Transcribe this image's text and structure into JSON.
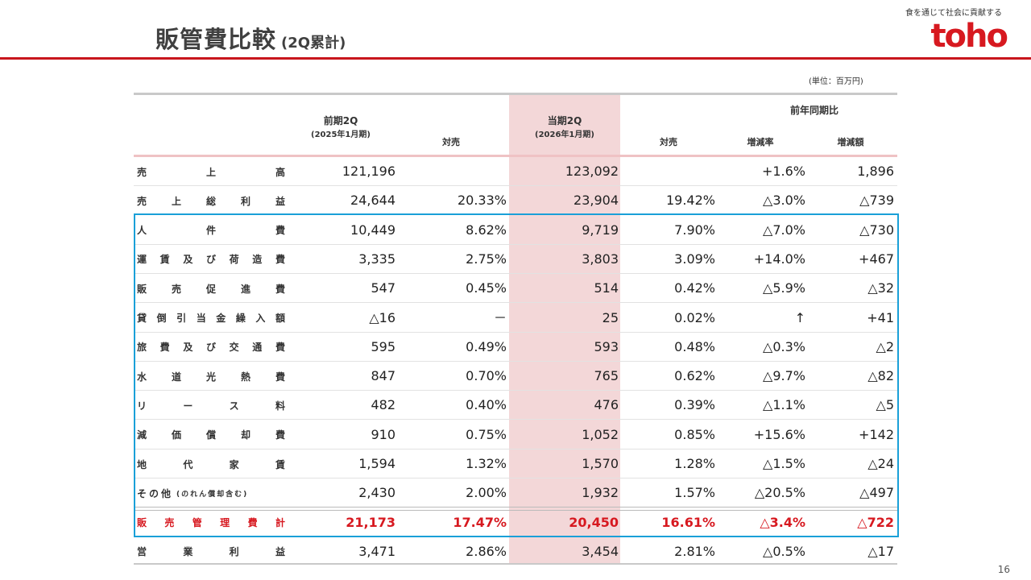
{
  "header": {
    "title": "販管費比較",
    "subtitle": "(2Q累計)",
    "tagline": "食を通じて社会に貢献する",
    "logo": "toho",
    "unit": "(単位：百万円)"
  },
  "columns": {
    "prev": "前期2Q",
    "prev_sub": "(2025年1月期)",
    "prev_ratio": "対売",
    "curr": "当期2Q",
    "curr_sub": "(2026年1月期)",
    "yoy": "前年同期比",
    "curr_ratio": "対売",
    "growth": "増減率",
    "diff": "増減額"
  },
  "rows": [
    {
      "chars": [
        "売",
        "上",
        "高"
      ],
      "prev": "121,196",
      "prev_ratio": "",
      "curr": "123,092",
      "curr_ratio": "",
      "growth": "+1.6%",
      "diff": "1,896"
    },
    {
      "chars": [
        "売",
        "上",
        "総",
        "利",
        "益"
      ],
      "prev": "24,644",
      "prev_ratio": "20.33%",
      "curr": "23,904",
      "curr_ratio": "19.42%",
      "growth": "△3.0%",
      "diff": "△739"
    },
    {
      "chars": [
        "人",
        "件",
        "費"
      ],
      "prev": "10,449",
      "prev_ratio": "8.62%",
      "curr": "9,719",
      "curr_ratio": "7.90%",
      "growth": "△7.0%",
      "diff": "△730"
    },
    {
      "chars": [
        "運",
        "賃",
        "及",
        "び",
        "荷",
        "造",
        "費"
      ],
      "prev": "3,335",
      "prev_ratio": "2.75%",
      "curr": "3,803",
      "curr_ratio": "3.09%",
      "growth": "+14.0%",
      "diff": "+467"
    },
    {
      "chars": [
        "販",
        "売",
        "促",
        "進",
        "費"
      ],
      "prev": "547",
      "prev_ratio": "0.45%",
      "curr": "514",
      "curr_ratio": "0.42%",
      "growth": "△5.9%",
      "diff": "△32"
    },
    {
      "chars": [
        "貸",
        "倒",
        "引",
        "当",
        "金",
        "繰",
        "入",
        "額"
      ],
      "prev": "△16",
      "prev_ratio": "－",
      "curr": "25",
      "curr_ratio": "0.02%",
      "growth": "↑",
      "diff": "+41"
    },
    {
      "chars": [
        "旅",
        "費",
        "及",
        "び",
        "交",
        "通",
        "費"
      ],
      "prev": "595",
      "prev_ratio": "0.49%",
      "curr": "593",
      "curr_ratio": "0.48%",
      "growth": "△0.3%",
      "diff": "△2"
    },
    {
      "chars": [
        "水",
        "道",
        "光",
        "熱",
        "費"
      ],
      "prev": "847",
      "prev_ratio": "0.70%",
      "curr": "765",
      "curr_ratio": "0.62%",
      "growth": "△9.7%",
      "diff": "△82"
    },
    {
      "chars": [
        "リ",
        "ー",
        "ス",
        "料"
      ],
      "prev": "482",
      "prev_ratio": "0.40%",
      "curr": "476",
      "curr_ratio": "0.39%",
      "growth": "△1.1%",
      "diff": "△5"
    },
    {
      "chars": [
        "減",
        "価",
        "償",
        "却",
        "費"
      ],
      "prev": "910",
      "prev_ratio": "0.75%",
      "curr": "1,052",
      "curr_ratio": "0.85%",
      "growth": "+15.6%",
      "diff": "+142"
    },
    {
      "chars": [
        "地",
        "代",
        "家",
        "賃"
      ],
      "prev": "1,594",
      "prev_ratio": "1.32%",
      "curr": "1,570",
      "curr_ratio": "1.28%",
      "growth": "△1.5%",
      "diff": "△24"
    },
    {
      "label_main": "その他",
      "label_small": "(のれん償却含む)",
      "prev": "2,430",
      "prev_ratio": "2.00%",
      "curr": "1,932",
      "curr_ratio": "1.57%",
      "growth": "△20.5%",
      "diff": "△497"
    },
    {
      "chars": [
        "販",
        "売",
        "管",
        "理",
        "費",
        "計"
      ],
      "prev": "21,173",
      "prev_ratio": "17.47%",
      "curr": "20,450",
      "curr_ratio": "16.61%",
      "growth": "△3.4%",
      "diff": "△722",
      "total": true
    },
    {
      "chars": [
        "営",
        "業",
        "利",
        "益"
      ],
      "prev": "3,471",
      "prev_ratio": "2.86%",
      "curr": "3,454",
      "curr_ratio": "2.81%",
      "growth": "△0.5%",
      "diff": "△17"
    }
  ],
  "page_number": "16",
  "colors": {
    "brand_red": "#d71920",
    "highlight": "#f3d7d8",
    "box_blue": "#1aa0d8"
  }
}
